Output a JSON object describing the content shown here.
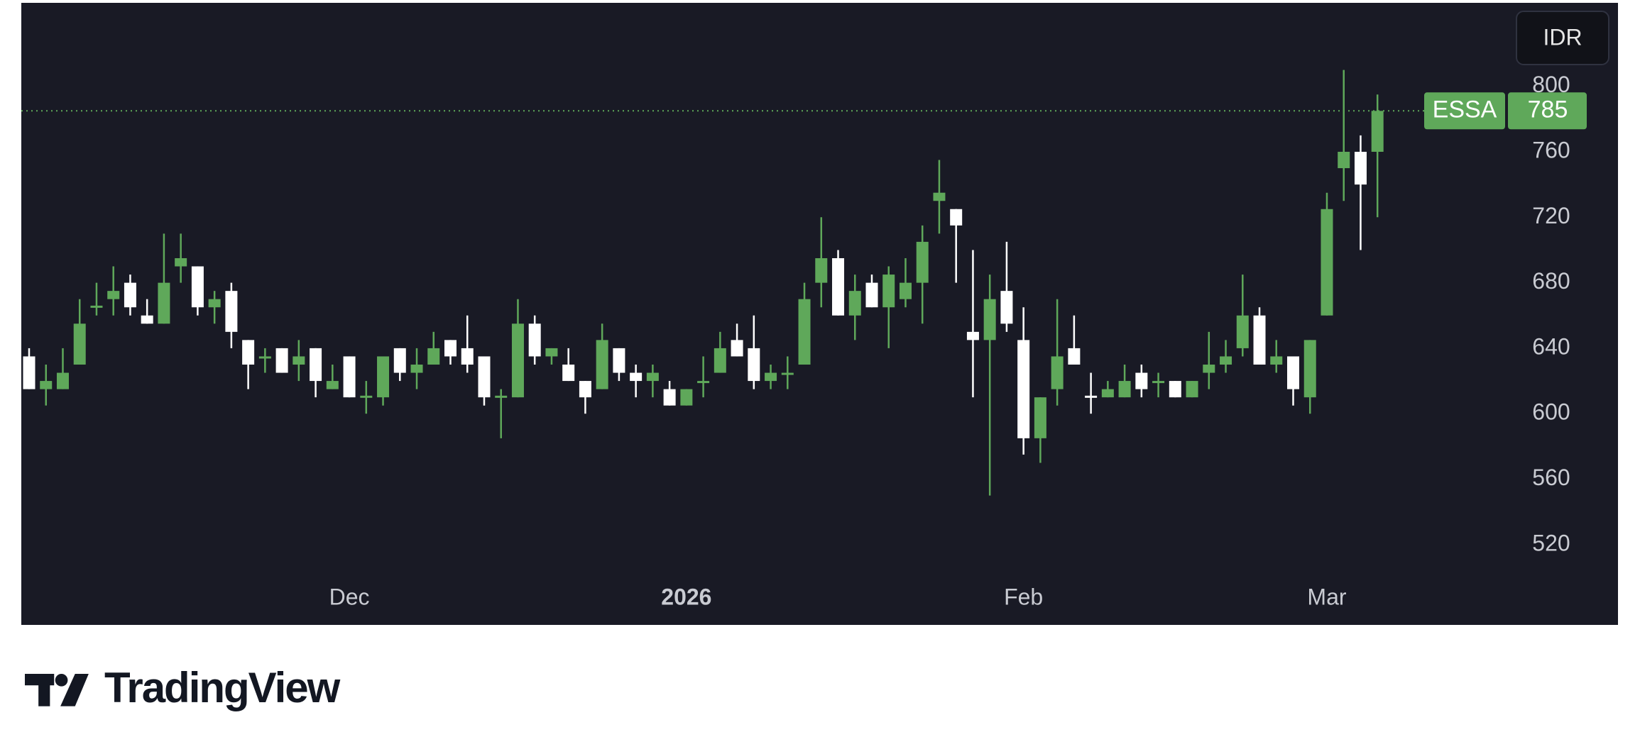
{
  "chart_data": {
    "type": "candlestick",
    "currency": "IDR",
    "symbol": "ESSA",
    "last_price": 785,
    "up_color": "#5fa85a",
    "down_color": "#ffffff",
    "categories": [
      null,
      null,
      null,
      null,
      null,
      null,
      null,
      null,
      null,
      null,
      null,
      null,
      null,
      null,
      null,
      null,
      null,
      null,
      null,
      "Dec",
      null,
      null,
      null,
      null,
      null,
      null,
      null,
      null,
      null,
      null,
      null,
      null,
      null,
      null,
      null,
      null,
      null,
      null,
      null,
      "2026",
      null,
      null,
      null,
      null,
      null,
      null,
      null,
      null,
      null,
      null,
      null,
      null,
      null,
      null,
      null,
      null,
      null,
      null,
      null,
      "Feb",
      null,
      null,
      null,
      null,
      null,
      null,
      null,
      null,
      null,
      null,
      null,
      null,
      null,
      null,
      null,
      null,
      null,
      "Mar",
      null,
      null,
      null
    ],
    "open": [
      635,
      615,
      615,
      630,
      665,
      670,
      680,
      660,
      655,
      690,
      690,
      665,
      675,
      645,
      634,
      640,
      630,
      640,
      615,
      635,
      610,
      610,
      640,
      625,
      630,
      645,
      640,
      635,
      610,
      610,
      655,
      635,
      630,
      620,
      615,
      640,
      625,
      620,
      615,
      605,
      619,
      625,
      645,
      640,
      620,
      624,
      630,
      680,
      695,
      660,
      680,
      665,
      670,
      680,
      730,
      725,
      650,
      645,
      675,
      645,
      585,
      615,
      640,
      611,
      610,
      610,
      625,
      619,
      620,
      610,
      625,
      630,
      640,
      660,
      630,
      635,
      610,
      660,
      750,
      760,
      760
    ],
    "high": [
      640,
      630,
      640,
      670,
      680,
      690,
      685,
      670,
      710,
      710,
      690,
      675,
      680,
      645,
      640,
      640,
      645,
      640,
      630,
      635,
      620,
      635,
      640,
      640,
      650,
      645,
      660,
      635,
      615,
      670,
      660,
      640,
      640,
      620,
      655,
      640,
      630,
      630,
      620,
      615,
      635,
      650,
      655,
      660,
      630,
      635,
      680,
      720,
      700,
      685,
      685,
      690,
      695,
      715,
      755,
      725,
      700,
      685,
      705,
      665,
      610,
      670,
      660,
      625,
      620,
      630,
      630,
      625,
      620,
      620,
      650,
      645,
      685,
      665,
      645,
      635,
      645,
      735,
      810,
      770,
      795
    ],
    "low": [
      615,
      605,
      615,
      630,
      660,
      660,
      660,
      655,
      655,
      680,
      660,
      655,
      640,
      615,
      625,
      625,
      620,
      610,
      615,
      610,
      600,
      605,
      620,
      615,
      630,
      630,
      625,
      605,
      585,
      610,
      630,
      630,
      620,
      600,
      615,
      620,
      610,
      610,
      605,
      605,
      610,
      625,
      635,
      615,
      615,
      615,
      630,
      665,
      660,
      645,
      665,
      640,
      665,
      655,
      710,
      680,
      610,
      550,
      650,
      575,
      570,
      605,
      630,
      600,
      610,
      610,
      610,
      610,
      610,
      610,
      615,
      625,
      635,
      630,
      625,
      605,
      600,
      660,
      730,
      700,
      720
    ],
    "close": [
      615,
      620,
      625,
      655,
      666,
      675,
      665,
      655,
      680,
      695,
      665,
      670,
      650,
      630,
      635,
      625,
      635,
      620,
      620,
      610,
      611,
      635,
      625,
      630,
      640,
      635,
      630,
      610,
      611,
      655,
      635,
      640,
      620,
      610,
      645,
      625,
      620,
      625,
      605,
      615,
      620,
      640,
      635,
      620,
      625,
      625,
      670,
      695,
      660,
      675,
      665,
      685,
      680,
      705,
      735,
      715,
      645,
      670,
      655,
      585,
      610,
      635,
      630,
      610,
      615,
      620,
      615,
      620,
      610,
      620,
      630,
      635,
      660,
      630,
      635,
      615,
      645,
      725,
      760,
      740,
      785
    ],
    "ylim": [
      500,
      851
    ],
    "yticks": [
      520,
      560,
      600,
      640,
      680,
      720,
      760,
      800
    ]
  },
  "brand": "TradingView"
}
